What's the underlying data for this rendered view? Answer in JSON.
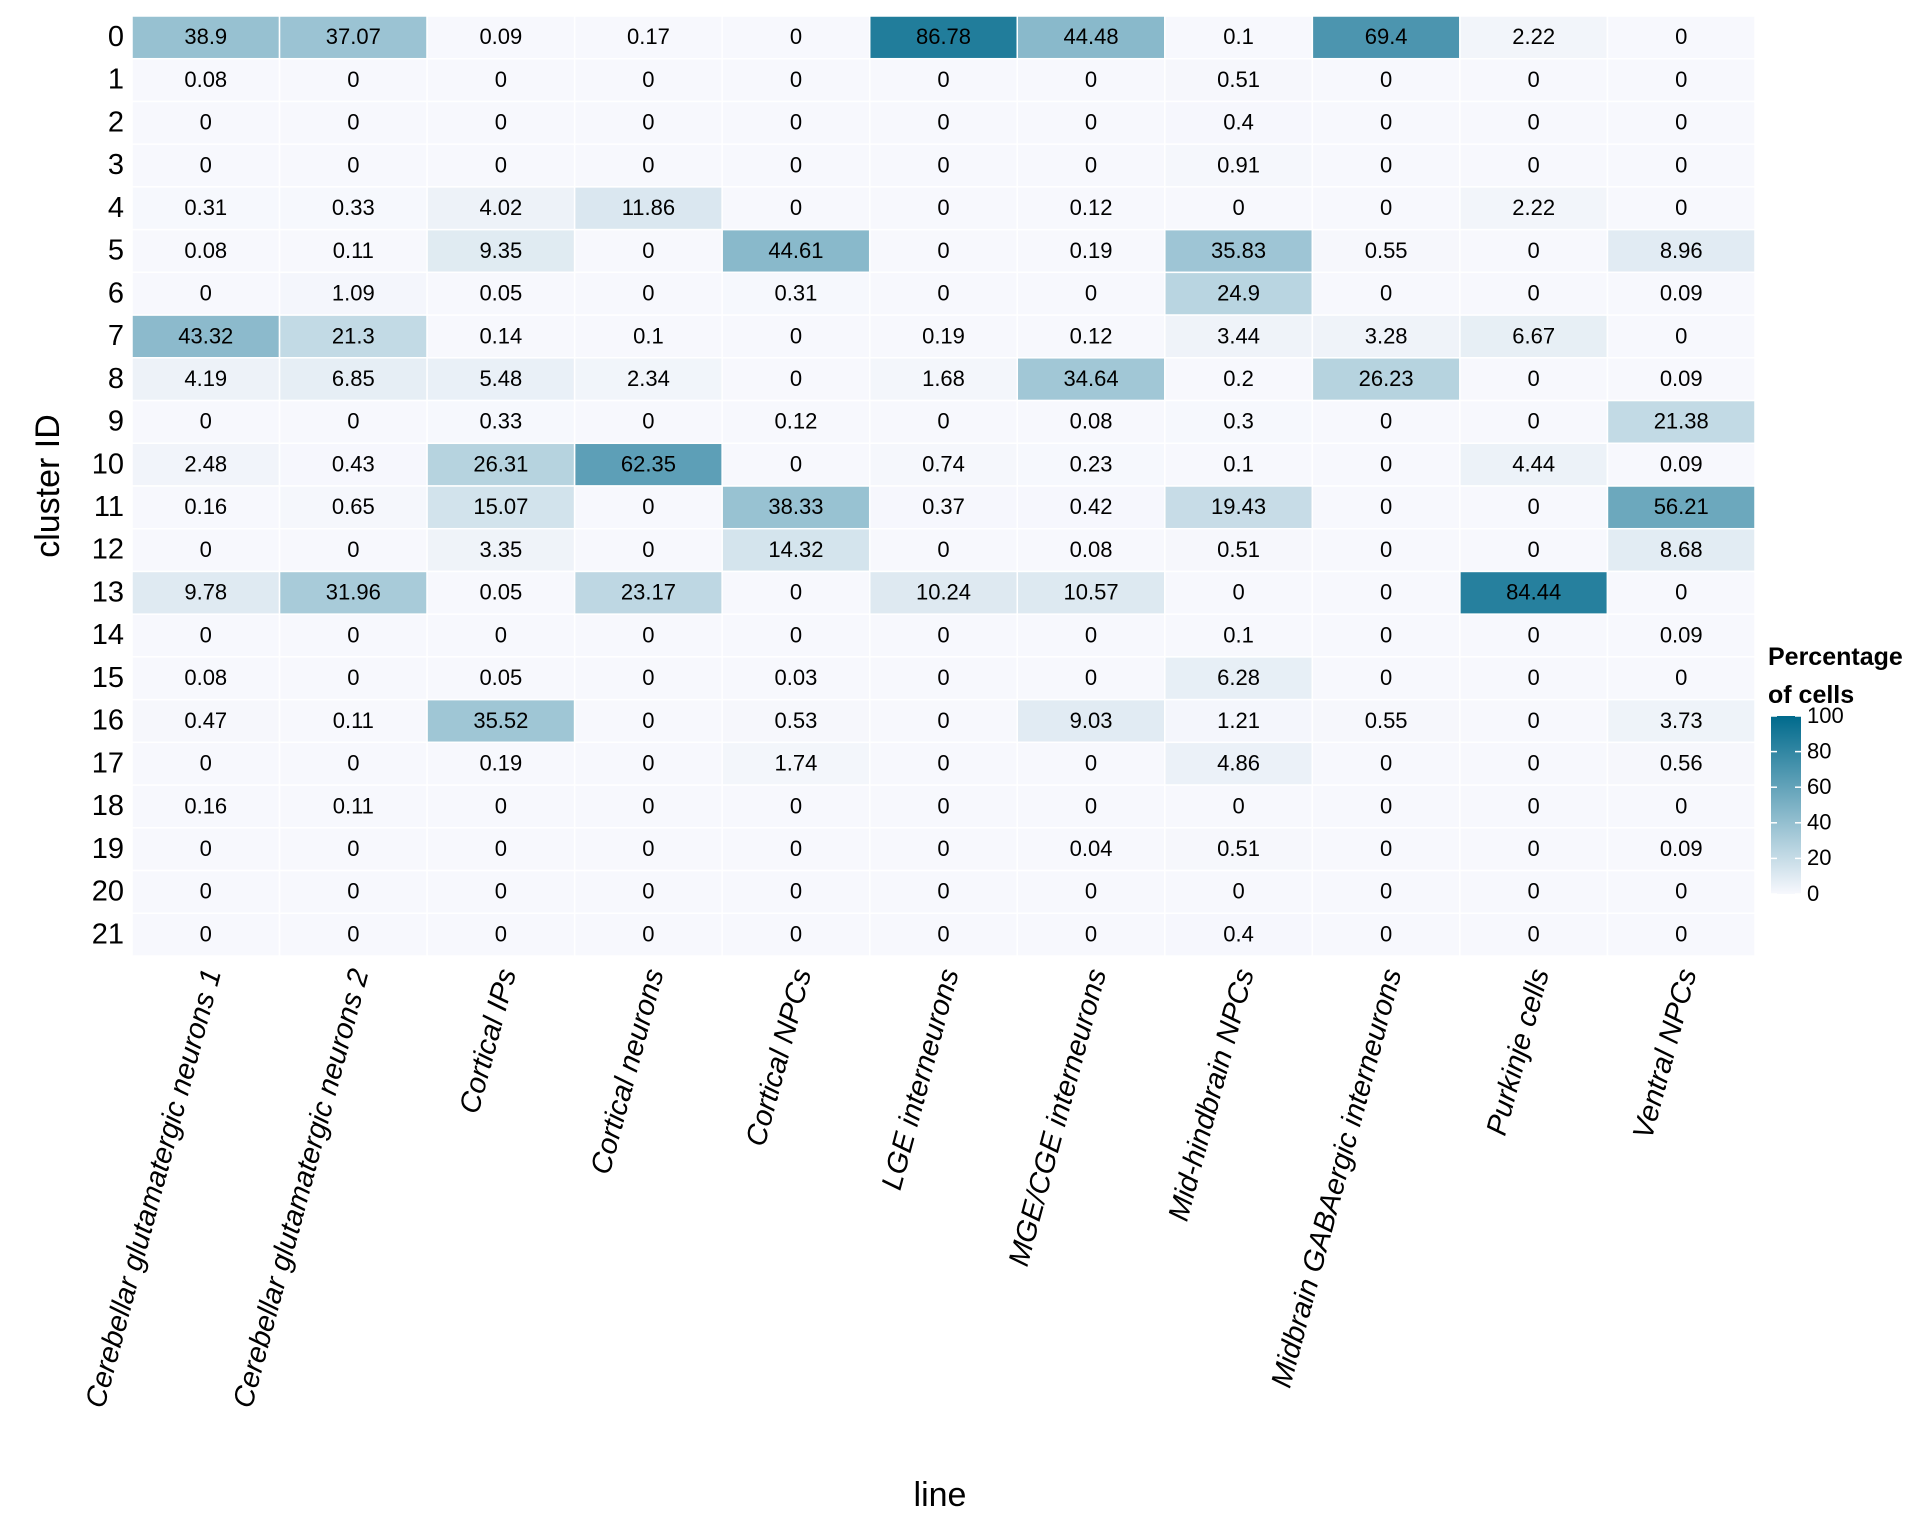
{
  "chart_data": {
    "type": "heatmap",
    "x_label": "line",
    "y_label": "cluster ID",
    "x_categories": [
      "Cerebellar glutamatergic neurons 1",
      "Cerebellar glutamatergic neurons 2",
      "Cortical IPs",
      "Cortical neurons",
      "Cortical NPCs",
      "LGE interneurons",
      "MGE/CGE interneurons",
      "Mid-hindbrain NPCs",
      "Midbrain GABAergic interneurons",
      "Purkinje cells",
      "Ventral NPCs"
    ],
    "y_categories": [
      "0",
      "1",
      "2",
      "3",
      "4",
      "5",
      "6",
      "7",
      "8",
      "9",
      "10",
      "11",
      "12",
      "13",
      "14",
      "15",
      "16",
      "17",
      "18",
      "19",
      "20",
      "21"
    ],
    "values": [
      [
        38.9,
        37.07,
        0.09,
        0.17,
        0,
        86.78,
        44.48,
        0.1,
        69.4,
        2.22,
        0
      ],
      [
        0.08,
        0,
        0,
        0,
        0,
        0,
        0,
        0.51,
        0,
        0,
        0
      ],
      [
        0,
        0,
        0,
        0,
        0,
        0,
        0,
        0.4,
        0,
        0,
        0
      ],
      [
        0,
        0,
        0,
        0,
        0,
        0,
        0,
        0.91,
        0,
        0,
        0
      ],
      [
        0.31,
        0.33,
        4.02,
        11.86,
        0,
        0,
        0.12,
        0,
        0,
        2.22,
        0
      ],
      [
        0.08,
        0.11,
        9.35,
        0,
        44.61,
        0,
        0.19,
        35.83,
        0.55,
        0,
        8.96
      ],
      [
        0,
        1.09,
        0.05,
        0,
        0.31,
        0,
        0,
        24.9,
        0,
        0,
        0.09
      ],
      [
        43.32,
        21.3,
        0.14,
        0.1,
        0,
        0.19,
        0.12,
        3.44,
        3.28,
        6.67,
        0
      ],
      [
        4.19,
        6.85,
        5.48,
        2.34,
        0,
        1.68,
        34.64,
        0.2,
        26.23,
        0,
        0.09
      ],
      [
        0,
        0,
        0.33,
        0,
        0.12,
        0,
        0.08,
        0.3,
        0,
        0,
        21.38
      ],
      [
        2.48,
        0.43,
        26.31,
        62.35,
        0,
        0.74,
        0.23,
        0.1,
        0,
        4.44,
        0.09
      ],
      [
        0.16,
        0.65,
        15.07,
        0,
        38.33,
        0.37,
        0.42,
        19.43,
        0,
        0,
        56.21
      ],
      [
        0,
        0,
        3.35,
        0,
        14.32,
        0,
        0.08,
        0.51,
        0,
        0,
        8.68
      ],
      [
        9.78,
        31.96,
        0.05,
        23.17,
        0,
        10.24,
        10.57,
        0,
        0,
        84.44,
        0
      ],
      [
        0,
        0,
        0,
        0,
        0,
        0,
        0,
        0.1,
        0,
        0,
        0.09
      ],
      [
        0.08,
        0,
        0.05,
        0,
        0.03,
        0,
        0,
        6.28,
        0,
        0,
        0
      ],
      [
        0.47,
        0.11,
        35.52,
        0,
        0.53,
        0,
        9.03,
        1.21,
        0.55,
        0,
        3.73
      ],
      [
        0,
        0,
        0.19,
        0,
        1.74,
        0,
        0,
        4.86,
        0,
        0,
        0.56
      ],
      [
        0.16,
        0.11,
        0,
        0,
        0,
        0,
        0,
        0,
        0,
        0,
        0
      ],
      [
        0,
        0,
        0,
        0,
        0,
        0,
        0.04,
        0.51,
        0,
        0,
        0.09
      ],
      [
        0,
        0,
        0,
        0,
        0,
        0,
        0,
        0,
        0,
        0,
        0
      ],
      [
        0,
        0,
        0,
        0,
        0,
        0,
        0,
        0.4,
        0,
        0,
        0
      ]
    ],
    "legend_title": "Percentage of cells",
    "zlim": [
      0,
      100
    ],
    "zticks": [
      0,
      20,
      40,
      60,
      80,
      100
    ],
    "color_low": "#f7f8fd",
    "color_high": "#006a8c"
  }
}
